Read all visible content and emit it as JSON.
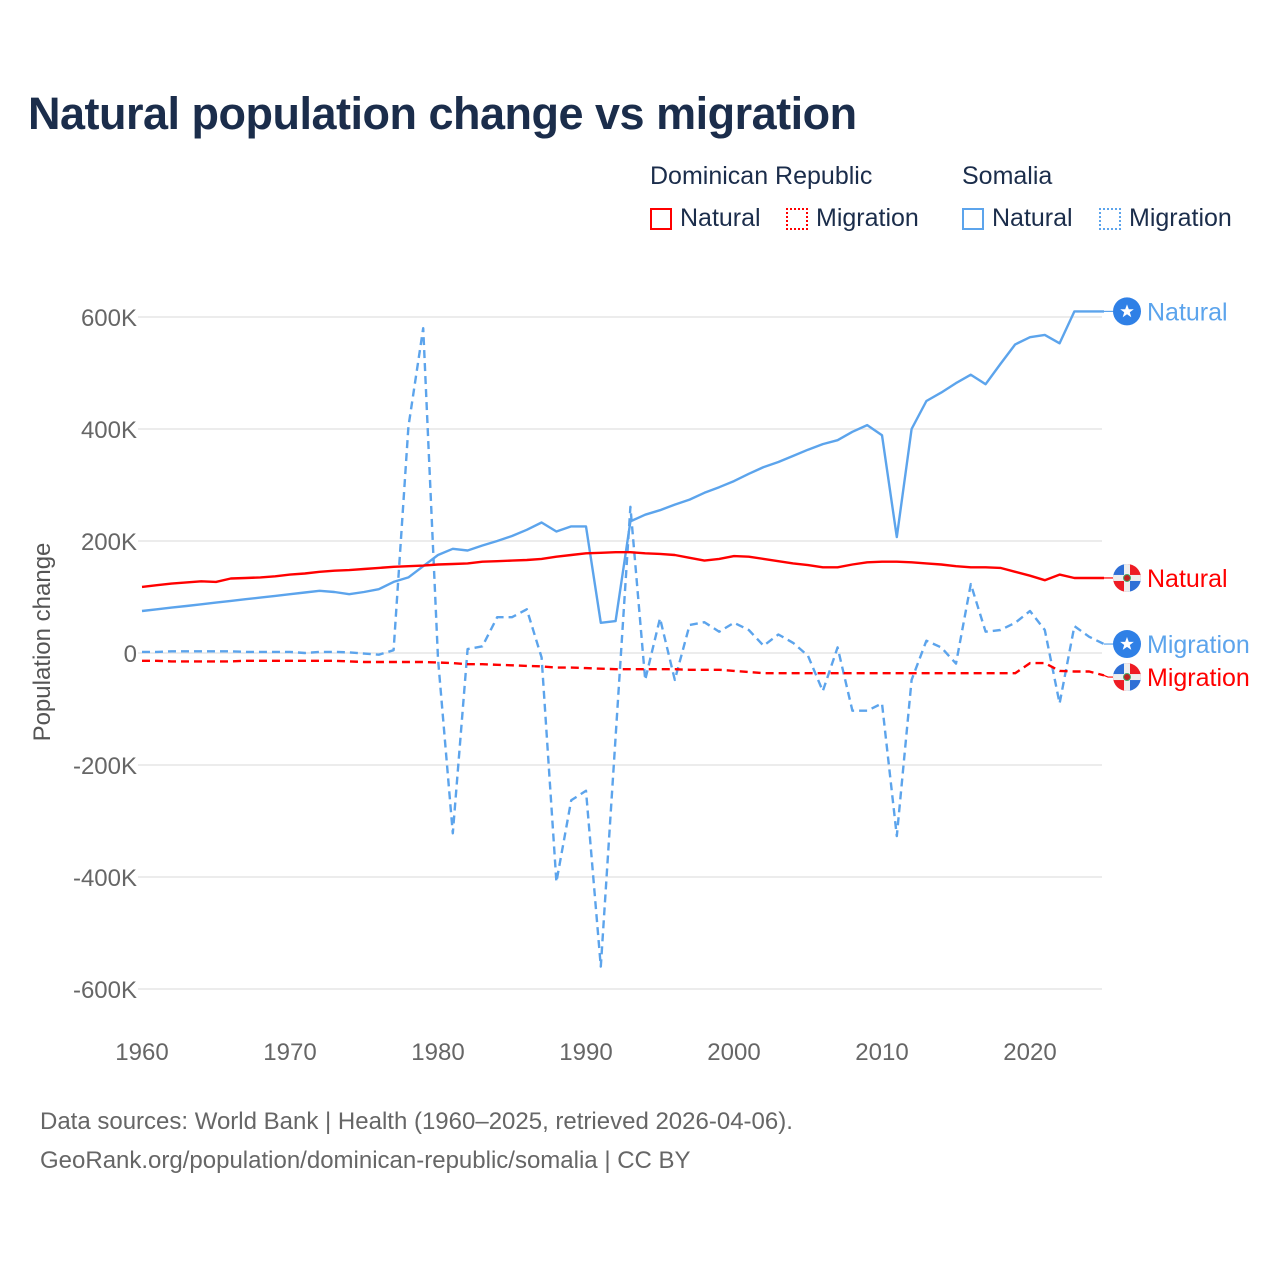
{
  "chart_data": {
    "type": "line",
    "title": "Natural population change vs migration",
    "xlabel": "",
    "ylabel": "Population change",
    "xlim": [
      1960,
      2025
    ],
    "ylim": [
      -650000,
      650000
    ],
    "x_ticks": [
      1960,
      1970,
      1980,
      1990,
      2000,
      2010,
      2020
    ],
    "x_tick_labels": [
      "1960",
      "1970",
      "1980",
      "1990",
      "2000",
      "2010",
      "2020"
    ],
    "y_ticks": [
      600000,
      400000,
      200000,
      0,
      -200000,
      -400000,
      -600000
    ],
    "y_tick_labels": [
      "600K",
      "400K",
      "200K",
      "0",
      "-200K",
      "-400K",
      "-600K"
    ],
    "grid": true,
    "legend_placement": "top-right",
    "legend_groups": [
      {
        "country": "Dominican Republic",
        "items": [
          "Natural",
          "Migration"
        ]
      },
      {
        "country": "Somalia",
        "items": [
          "Natural",
          "Migration"
        ]
      }
    ],
    "x": [
      1960,
      1961,
      1962,
      1963,
      1964,
      1965,
      1966,
      1967,
      1968,
      1969,
      1970,
      1971,
      1972,
      1973,
      1974,
      1975,
      1976,
      1977,
      1978,
      1979,
      1980,
      1981,
      1982,
      1983,
      1984,
      1985,
      1986,
      1987,
      1988,
      1989,
      1990,
      1991,
      1992,
      1993,
      1994,
      1995,
      1996,
      1997,
      1998,
      1999,
      2000,
      2001,
      2002,
      2003,
      2004,
      2005,
      2006,
      2007,
      2008,
      2009,
      2010,
      2011,
      2012,
      2013,
      2014,
      2015,
      2016,
      2017,
      2018,
      2019,
      2020,
      2021,
      2022,
      2023,
      2024,
      2025
    ],
    "series": [
      {
        "name": "Natural",
        "country": "Dominican Republic",
        "color": "#ff0000",
        "dash": "solid",
        "flag": "dominican-republic",
        "values": [
          118000,
          121000,
          124000,
          126000,
          128000,
          127000,
          133000,
          134000,
          135000,
          137000,
          140000,
          142000,
          145000,
          147000,
          148000,
          150000,
          152000,
          154000,
          155000,
          156000,
          158000,
          159000,
          160000,
          163000,
          164000,
          165000,
          166000,
          168000,
          172000,
          175000,
          178000,
          179000,
          180000,
          180000,
          178000,
          177000,
          175000,
          170000,
          165000,
          168000,
          173000,
          172000,
          168000,
          164000,
          160000,
          157000,
          153000,
          153000,
          158000,
          162000,
          163000,
          163000,
          162000,
          160000,
          158000,
          155000,
          153000,
          153000,
          152000,
          145000,
          138000,
          130000,
          140000,
          134000,
          134000,
          134000
        ]
      },
      {
        "name": "Migration",
        "country": "Dominican Republic",
        "color": "#ff0000",
        "dash": "dashed",
        "flag": "dominican-republic",
        "values": [
          -14000,
          -14000,
          -15000,
          -15000,
          -15000,
          -15000,
          -15000,
          -14000,
          -14000,
          -14000,
          -14000,
          -14000,
          -14000,
          -14000,
          -15000,
          -16000,
          -16000,
          -16000,
          -16000,
          -16000,
          -17000,
          -18000,
          -20000,
          -20000,
          -21000,
          -22000,
          -23000,
          -24000,
          -26000,
          -26000,
          -27000,
          -28000,
          -29000,
          -29000,
          -29000,
          -29000,
          -29000,
          -30000,
          -30000,
          -30000,
          -32000,
          -34000,
          -36000,
          -36000,
          -36000,
          -36000,
          -36000,
          -36000,
          -36000,
          -36000,
          -36000,
          -36000,
          -36000,
          -36000,
          -36000,
          -36000,
          -36000,
          -36000,
          -36000,
          -36000,
          -18000,
          -18000,
          -32000,
          -33000,
          -33000,
          -40000
        ]
      },
      {
        "name": "Natural",
        "country": "Somalia",
        "color": "#5ca4ec",
        "dash": "solid",
        "flag": "somalia",
        "values": [
          75000,
          78000,
          81000,
          84000,
          87000,
          90000,
          93000,
          96000,
          99000,
          102000,
          105000,
          108000,
          111000,
          109000,
          105000,
          109000,
          114000,
          127000,
          135000,
          155000,
          175000,
          186000,
          183000,
          192000,
          200000,
          209000,
          220000,
          233000,
          217000,
          226000,
          226000,
          54000,
          57000,
          235000,
          247000,
          255000,
          265000,
          274000,
          286000,
          296000,
          307000,
          320000,
          332000,
          341000,
          352000,
          363000,
          373000,
          380000,
          395000,
          407000,
          389000,
          207000,
          400000,
          450000,
          465000,
          482000,
          497000,
          480000,
          516000,
          551000,
          564000,
          568000,
          553000,
          610000,
          610000,
          610000
        ]
      },
      {
        "name": "Migration",
        "country": "Somalia",
        "color": "#5ca4ec",
        "dash": "dashed",
        "flag": "somalia",
        "values": [
          2000,
          2000,
          3000,
          3000,
          3000,
          3000,
          3000,
          2000,
          2000,
          2000,
          2000,
          0,
          2000,
          2000,
          1000,
          -1000,
          -3000,
          5000,
          404000,
          580000,
          -10000,
          -322000,
          7000,
          12000,
          64000,
          64000,
          78000,
          -8000,
          -409000,
          -263000,
          -246000,
          -560000,
          -150000,
          261000,
          -48000,
          62000,
          -48000,
          50000,
          55000,
          38000,
          54000,
          41000,
          13000,
          33000,
          18000,
          -5000,
          -68000,
          10000,
          -103000,
          -103000,
          -90000,
          -327000,
          -48000,
          22000,
          10000,
          -19000,
          123000,
          38000,
          41000,
          54000,
          75000,
          41000,
          -90000,
          48000,
          29000,
          16000
        ]
      }
    ]
  },
  "footer": {
    "line1": "Data sources: World Bank | Health (1960–2025, retrieved 2026-04-06).",
    "line2": "GeoRank.org/population/dominican-republic/somalia | CC BY"
  }
}
